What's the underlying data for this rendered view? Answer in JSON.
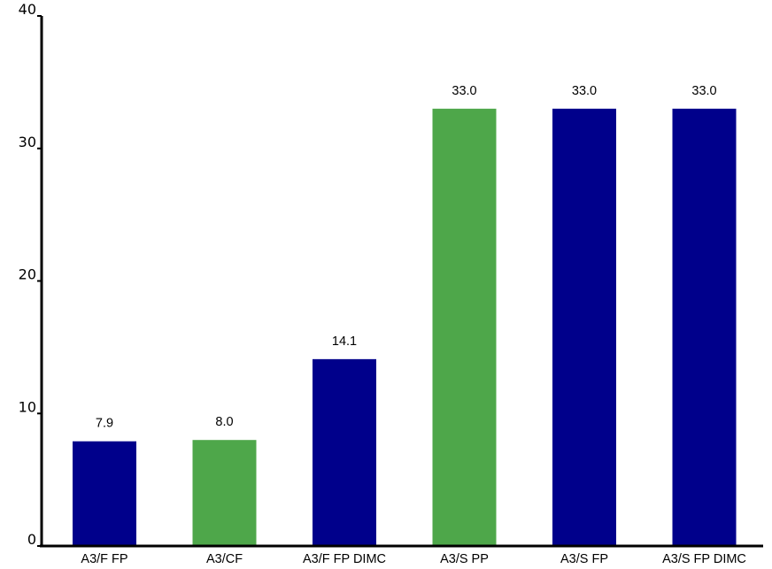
{
  "chart_data": {
    "type": "bar",
    "title": "",
    "xlabel": "",
    "ylabel": "",
    "categories": [
      "A3/F FP",
      "A3/CF",
      "A3/F FP DIMC",
      "A3/S PP",
      "A3/S FP",
      "A3/S FP DIMC"
    ],
    "values": [
      7.9,
      8.0,
      14.1,
      33.0,
      33.0,
      33.0
    ],
    "value_labels": [
      "7.9",
      "8.0",
      "14.1",
      "33.0",
      "33.0",
      "33.0"
    ],
    "bar_colors": [
      "#00008b",
      "#4ea74a",
      "#00008b",
      "#4ea74a",
      "#00008b",
      "#00008b"
    ],
    "ylim": [
      0,
      40
    ],
    "yticks": [
      0,
      10,
      20,
      30,
      40
    ],
    "ytick_labels": [
      "0",
      "10",
      "20",
      "30",
      "40"
    ],
    "grid": false,
    "legend": "none"
  }
}
